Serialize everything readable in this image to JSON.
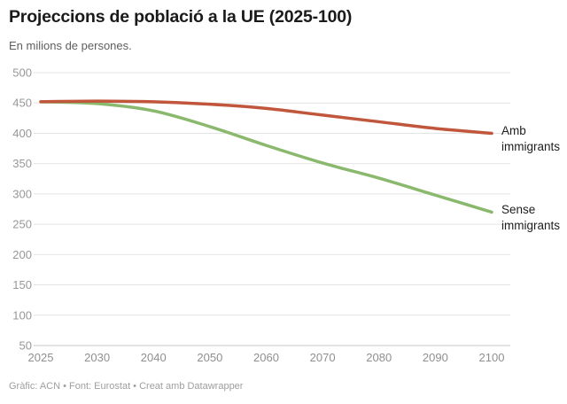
{
  "header": {
    "title": "Projeccions de població a la UE (2025-100)",
    "subtitle": "En milions de persones."
  },
  "chart_data": {
    "type": "line",
    "title": "Projeccions de població a la UE (2025-100)",
    "subtitle": "En milions de persones.",
    "x_categories": [
      "2025",
      "2030",
      "2040",
      "2050",
      "2060",
      "2070",
      "2080",
      "2090",
      "2100"
    ],
    "series": [
      {
        "name": "Amb immigrants",
        "color": "#c0563c",
        "values": [
          452,
          453,
          452,
          448,
          441,
          430,
          419,
          408,
          400
        ]
      },
      {
        "name": "Sense immigrants",
        "color": "#8ab96e",
        "values": [
          452,
          449,
          437,
          411,
          380,
          351,
          326,
          298,
          270
        ]
      }
    ],
    "y_ticks": [
      500,
      450,
      400,
      350,
      300,
      250,
      200,
      150,
      100,
      50
    ],
    "ylim": [
      50,
      500
    ],
    "xlabel": "",
    "ylabel": "En milions de persones",
    "grid": "horizontal",
    "legend_position": "labels-at-line-ends",
    "colors": {
      "gridline": "#e4e4e4",
      "baseline": "#c4c4c4",
      "tick_label": "#979797",
      "title_text": "#1a1a1a",
      "subtitle_text": "#5e5e5e",
      "footer_text": "#9e9e9e"
    }
  },
  "footer": {
    "credit": "Gràfic: ACN • Font: Eurostat • Creat amb Datawrapper"
  }
}
